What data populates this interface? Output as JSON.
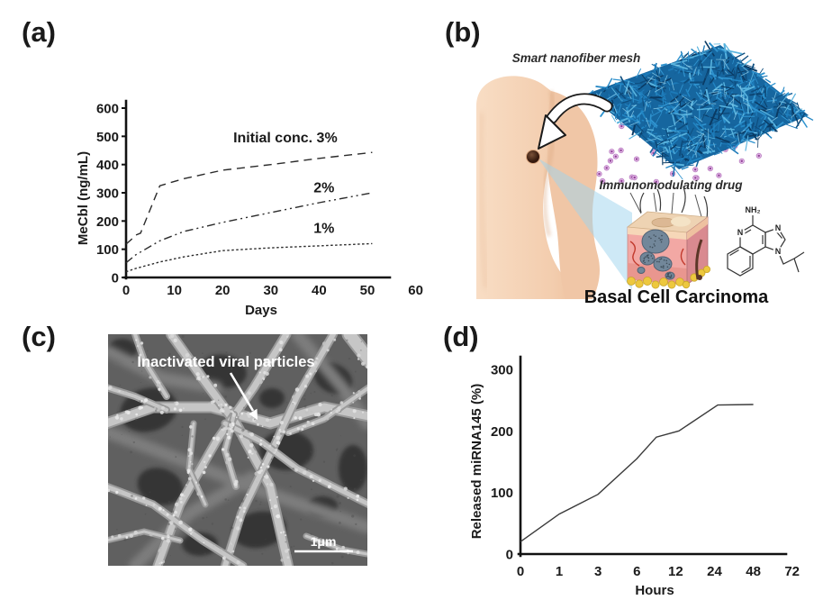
{
  "figure_type": "scientific-paper-figure",
  "panels": {
    "a": {
      "label": "(a)"
    },
    "b": {
      "label": "(b)",
      "captions": {
        "mesh": "Smart nanofiber mesh",
        "drug": "Immunomodulating drug",
        "diagnosis": "Basal Cell Carcinoma"
      },
      "molecule": {
        "amine": "NH₂",
        "n_left": "N",
        "n_top": "N",
        "n_bottom": "N"
      },
      "colors": {
        "mesh_blue": "#1d7ab8",
        "drug_dot_purple": "#8e3f96",
        "skin_tone": "#f5d3b8",
        "beam_blue": "#9ed4ee"
      }
    },
    "c": {
      "label": "(c)",
      "annotation": "Inactivated viral particles",
      "scale_bar": "1μm"
    },
    "d": {
      "label": "(d)"
    }
  },
  "chart_data": [
    {
      "panel": "a",
      "type": "line",
      "xlabel": "Days",
      "ylabel": "MeCbl (ng/mL)",
      "xlim": [
        0,
        60
      ],
      "ylim": [
        0,
        600
      ],
      "x_ticks": [
        0,
        10,
        20,
        30,
        40,
        50,
        60
      ],
      "y_ticks": [
        0,
        100,
        200,
        300,
        400,
        500,
        600
      ],
      "grid": false,
      "legend": "inline labels",
      "line_color": "#2a2a2a",
      "series": [
        {
          "name": "Initial conc. 3%",
          "line_style": "dashed",
          "x": [
            0,
            1,
            2,
            3,
            7,
            12,
            20,
            30,
            40,
            51
          ],
          "values": [
            118,
            133,
            150,
            157,
            325,
            350,
            380,
            400,
            422,
            443
          ]
        },
        {
          "name": "2%",
          "line_style": "dash-dot-dot",
          "x": [
            0,
            2,
            7,
            12,
            20,
            30,
            40,
            51
          ],
          "values": [
            52,
            80,
            130,
            163,
            195,
            230,
            265,
            300
          ]
        },
        {
          "name": "1%",
          "line_style": "dotted",
          "x": [
            0,
            2,
            7,
            12,
            20,
            30,
            40,
            51
          ],
          "values": [
            20,
            32,
            55,
            73,
            95,
            105,
            112,
            120
          ]
        }
      ],
      "annotations": [
        {
          "text": "Initial conc. 3%",
          "x": 33,
          "y": 478
        },
        {
          "text": "2%",
          "x": 41,
          "y": 302
        },
        {
          "text": "1%",
          "x": 41,
          "y": 158
        }
      ]
    },
    {
      "panel": "d",
      "type": "line",
      "xlabel": "Hours",
      "ylabel": "Released miRNA145 (%)",
      "ylim": [
        0,
        300
      ],
      "x_ticks": [
        0,
        1,
        3,
        6,
        12,
        24,
        48,
        72
      ],
      "x_axis_note": "tick labels equally spaced (non-linear time axis)",
      "y_ticks": [
        0,
        100,
        200,
        300
      ],
      "grid": false,
      "line_color": "#3a3a3a",
      "series": [
        {
          "name": "Released miRNA145",
          "line_style": "solid",
          "x": [
            0,
            1,
            3,
            6,
            9,
            13,
            26,
            48
          ],
          "values": [
            20,
            65,
            97,
            155,
            190,
            200,
            242,
            243
          ]
        }
      ]
    }
  ]
}
